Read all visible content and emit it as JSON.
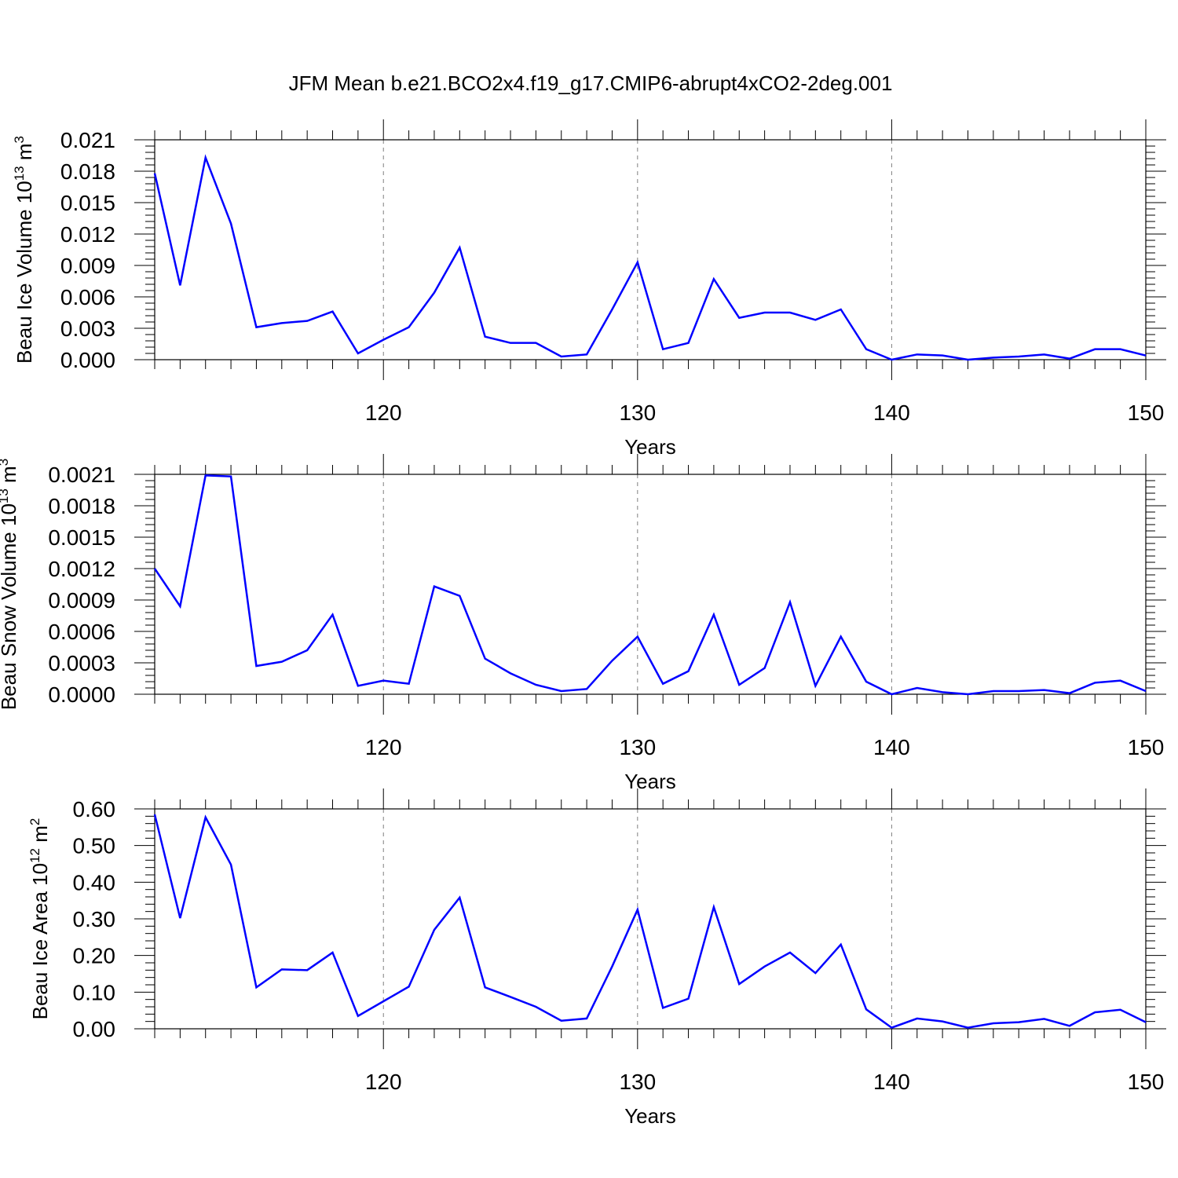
{
  "title": "JFM Mean b.e21.BCO2x4.f19_g17.CMIP6-abrupt4xCO2-2deg.001",
  "colors": {
    "line": "#0000ff",
    "axis": "#000000",
    "grid": "#808080"
  },
  "chart_data": [
    {
      "type": "line",
      "xlabel": "Years",
      "ylabel": {
        "text": "Beau Ice Volume 10",
        "sup": "13",
        "unit": " m",
        "unit_sup": "3"
      },
      "xlim": [
        111,
        150
      ],
      "ylim": [
        0,
        0.021
      ],
      "x_ticks": [
        120,
        130,
        140,
        150
      ],
      "y_ticks": [
        "0.000",
        "0.003",
        "0.006",
        "0.009",
        "0.012",
        "0.015",
        "0.018",
        "0.021"
      ],
      "grid_x": [
        120,
        130,
        140
      ],
      "x": [
        111,
        112,
        113,
        114,
        115,
        116,
        117,
        118,
        119,
        120,
        121,
        122,
        123,
        124,
        125,
        126,
        127,
        128,
        129,
        130,
        131,
        132,
        133,
        134,
        135,
        136,
        137,
        138,
        139,
        140,
        141,
        142,
        143,
        144,
        145,
        146,
        147,
        148,
        149,
        150
      ],
      "values": [
        0.0178,
        0.0071,
        0.0193,
        0.013,
        0.0031,
        0.0035,
        0.0037,
        0.0046,
        0.0006,
        0.0019,
        0.0031,
        0.0064,
        0.0107,
        0.0022,
        0.0016,
        0.0016,
        0.0003,
        0.0005,
        0.0048,
        0.0093,
        0.001,
        0.0016,
        0.0077,
        0.004,
        0.0045,
        0.0045,
        0.0038,
        0.0048,
        0.001,
        0.0,
        0.0005,
        0.0004,
        0.0,
        0.0002,
        0.0003,
        0.0005,
        0.0001,
        0.001,
        0.001,
        0.0004
      ]
    },
    {
      "type": "line",
      "xlabel": "Years",
      "ylabel": {
        "text": "Beau Snow Volume 10",
        "sup": "13",
        "unit": " m",
        "unit_sup": "3"
      },
      "xlim": [
        111,
        150
      ],
      "ylim": [
        0,
        0.0021
      ],
      "x_ticks": [
        120,
        130,
        140,
        150
      ],
      "y_ticks": [
        "0.0000",
        "0.0003",
        "0.0006",
        "0.0009",
        "0.0012",
        "0.0015",
        "0.0018",
        "0.0021"
      ],
      "grid_x": [
        120,
        130,
        140
      ],
      "x": [
        111,
        112,
        113,
        114,
        115,
        116,
        117,
        118,
        119,
        120,
        121,
        122,
        123,
        124,
        125,
        126,
        127,
        128,
        129,
        130,
        131,
        132,
        133,
        134,
        135,
        136,
        137,
        138,
        139,
        140,
        141,
        142,
        143,
        144,
        145,
        146,
        147,
        148,
        149,
        150
      ],
      "values": [
        0.0012,
        0.00084,
        0.00209,
        0.00208,
        0.00027,
        0.00031,
        0.00042,
        0.00076,
        8e-05,
        0.00013,
        0.0001,
        0.00103,
        0.00094,
        0.00034,
        0.0002,
        9e-05,
        3e-05,
        5e-05,
        0.00032,
        0.00055,
        0.0001,
        0.00022,
        0.00076,
        9e-05,
        0.00025,
        0.00088,
        8e-05,
        0.00055,
        0.00012,
        0.0,
        6e-05,
        2e-05,
        0.0,
        3e-05,
        3e-05,
        4e-05,
        1e-05,
        0.00011,
        0.00013,
        3e-05
      ]
    },
    {
      "type": "line",
      "xlabel": "Years",
      "ylabel": {
        "text": "Beau Ice Area 10",
        "sup": "12",
        "unit": " m",
        "unit_sup": "2"
      },
      "xlim": [
        111,
        150
      ],
      "ylim": [
        0,
        0.6
      ],
      "x_ticks": [
        120,
        130,
        140,
        150
      ],
      "y_ticks": [
        "0.00",
        "0.10",
        "0.20",
        "0.30",
        "0.40",
        "0.50",
        "0.60"
      ],
      "grid_x": [
        120,
        130,
        140
      ],
      "x": [
        111,
        112,
        113,
        114,
        115,
        116,
        117,
        118,
        119,
        120,
        121,
        122,
        123,
        124,
        125,
        126,
        127,
        128,
        129,
        130,
        131,
        132,
        133,
        134,
        135,
        136,
        137,
        138,
        139,
        140,
        141,
        142,
        143,
        144,
        145,
        146,
        147,
        148,
        149,
        150
      ],
      "values": [
        0.585,
        0.302,
        0.577,
        0.448,
        0.113,
        0.162,
        0.16,
        0.208,
        0.035,
        0.075,
        0.115,
        0.27,
        0.358,
        0.113,
        0.087,
        0.06,
        0.022,
        0.028,
        0.17,
        0.325,
        0.057,
        0.082,
        0.332,
        0.122,
        0.17,
        0.208,
        0.152,
        0.23,
        0.053,
        0.003,
        0.028,
        0.02,
        0.003,
        0.015,
        0.018,
        0.027,
        0.008,
        0.045,
        0.052,
        0.018
      ]
    }
  ]
}
